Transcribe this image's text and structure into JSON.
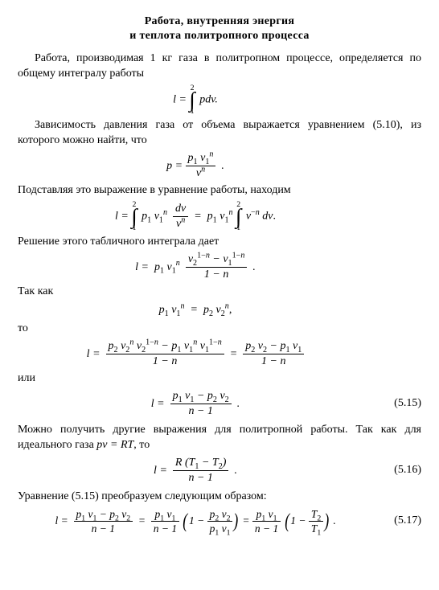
{
  "title_line1": "Работа, внутренняя энергия",
  "title_line2": "и теплота политропного процесса",
  "p1": "Работа, производимая 1 кг газа в политропном процессе, определяется по общему интегралу работы",
  "p2": "Зависимость давления газа от объема выражается уравнением (5.10), из которого можно найти, что",
  "p3": "Подставляя это выражение в уравнение работы, находим",
  "p4": "Решение этого табличного интеграла дает",
  "p5": "Так как",
  "p6": "то",
  "p7": "или",
  "p8": "Можно получить другие выражения для политропной работы. Так как для идеального газа",
  "p8b": ", то",
  "p9": "Уравнение (5.15) преобразуем следующим образом:",
  "eqnum15": "(5.15)",
  "eqnum16": "(5.16)",
  "eqnum17": "(5.17)",
  "eq": {
    "l": "l",
    "p": "p",
    "v": "v",
    "d": "d",
    "n": "n",
    "R": "R",
    "T": "T",
    "eqs": "=",
    "minus": "−",
    "one": "1",
    "two": "2",
    "dot": ".",
    "comma": ",",
    "semi": ";",
    "pdv": "pdv.",
    "dv": "dv",
    "pvRT": "pv = RT"
  }
}
